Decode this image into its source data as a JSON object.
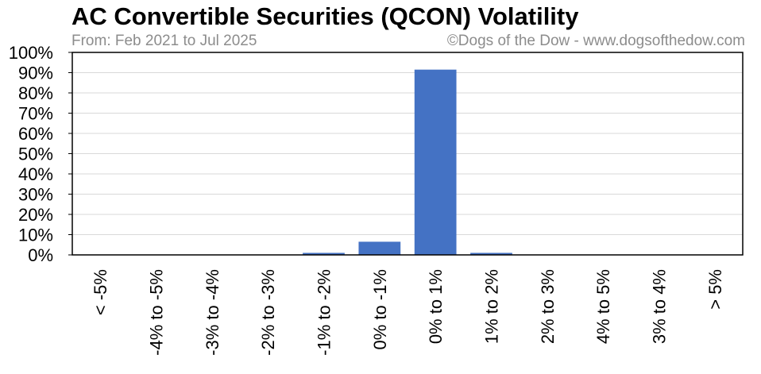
{
  "header": {
    "title": "AC Convertible Securities (QCON) Volatility",
    "subtitle": "From: Feb 2021 to Jul 2025",
    "credit": "©Dogs of the Dow - www.dogsofthedow.com"
  },
  "colors": {
    "bar": "#4472c4",
    "grid": "#d9d9d9",
    "axis": "#000000"
  },
  "chart_data": {
    "type": "bar",
    "title": "AC Convertible Securities (QCON) Volatility",
    "categories": [
      "< -5%",
      "-4% to -5%",
      "-3% to -4%",
      "-2% to -3%",
      "-1% to -2%",
      "0% to -1%",
      "0% to 1%",
      "1% to 2%",
      "2% to 3%",
      "4% to 5%",
      "3% to 4%",
      "> 5%"
    ],
    "values": [
      0,
      0,
      0,
      0,
      1,
      6.5,
      91.5,
      1,
      0,
      0,
      0,
      0
    ],
    "ylim": [
      0,
      100
    ],
    "yticks": [
      "0%",
      "10%",
      "20%",
      "30%",
      "40%",
      "50%",
      "60%",
      "70%",
      "80%",
      "90%",
      "100%"
    ],
    "xlabel": "",
    "ylabel": "",
    "grid": true,
    "legend": "none"
  }
}
